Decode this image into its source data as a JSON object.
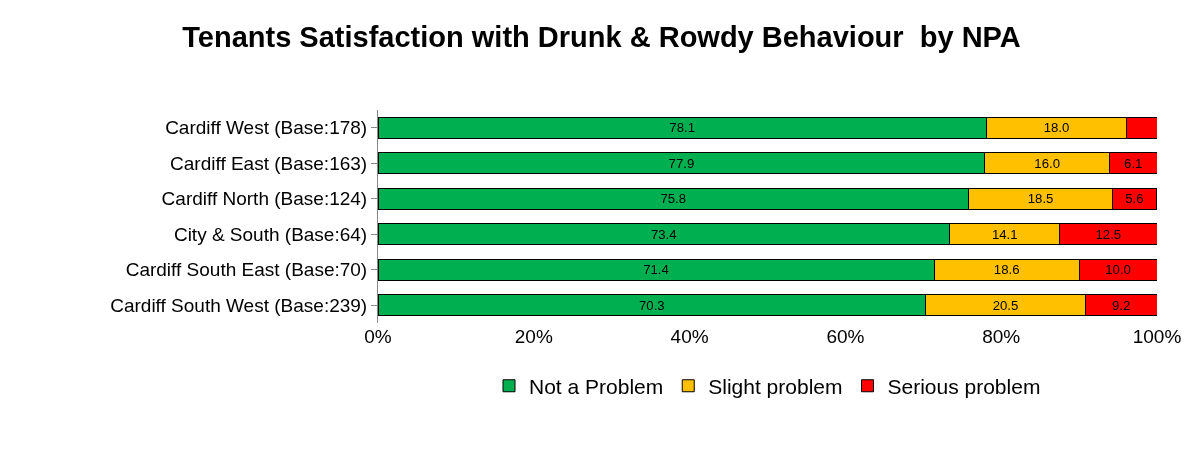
{
  "chart_data": {
    "type": "bar",
    "orientation": "horizontal",
    "stacked": true,
    "title": "Tenants Satisfaction with Drunk & Rowdy Behaviour  by NPA",
    "categories": [
      "Cardiff West (Base:178)",
      "Cardiff East (Base:163)",
      "Cardiff North (Base:124)",
      "City & South (Base:64)",
      "Cardiff South East (Base:70)",
      "Cardiff South West (Base:239)"
    ],
    "series": [
      {
        "name": "Not a Problem",
        "color": "#00b050",
        "values": [
          78.1,
          77.9,
          75.8,
          73.4,
          71.4,
          70.3
        ],
        "value_labels": [
          "78.1",
          "77.9",
          "75.8",
          "73.4",
          "71.4",
          "70.3"
        ]
      },
      {
        "name": "Slight problem",
        "color": "#ffc000",
        "values": [
          18.0,
          16.0,
          18.5,
          14.1,
          18.6,
          20.5
        ],
        "value_labels": [
          "18.0",
          "16.0",
          "18.5",
          "14.1",
          "18.6",
          "20.5"
        ]
      },
      {
        "name": "Serious problem",
        "color": "#ff0000",
        "values": [
          3.9,
          6.1,
          5.6,
          12.5,
          10.0,
          9.2
        ],
        "value_labels": [
          null,
          "6.1",
          "5.6",
          "12.5",
          "10.0",
          "9.2"
        ]
      }
    ],
    "xlim": [
      0,
      100
    ],
    "xticks": [
      {
        "value": 0,
        "label": "0%"
      },
      {
        "value": 20,
        "label": "20%"
      },
      {
        "value": 40,
        "label": "40%"
      },
      {
        "value": 60,
        "label": "60%"
      },
      {
        "value": 80,
        "label": "80%"
      },
      {
        "value": 100,
        "label": "100%"
      }
    ],
    "grid": false,
    "legend": "bottom"
  }
}
